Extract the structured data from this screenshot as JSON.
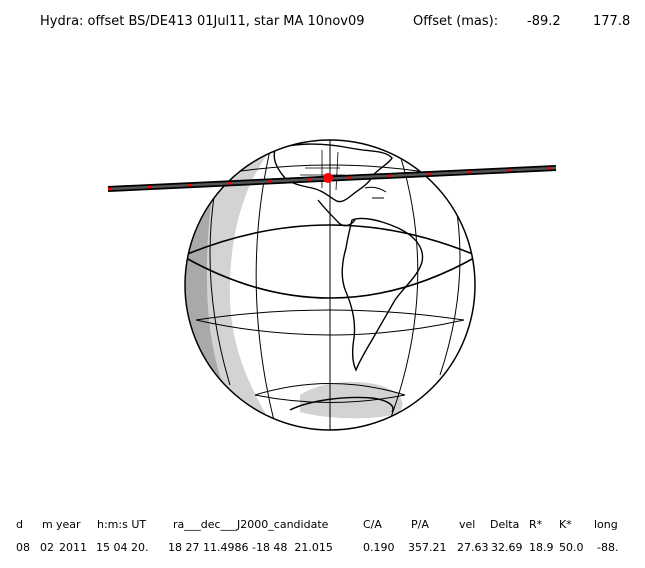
{
  "header": {
    "title": "Hydra: offset BS/DE413 01Jul11, star MA 10nov09",
    "offset_label": "Offset (mas):",
    "offset_x": "-89.2",
    "offset_y": "177.8"
  },
  "table": {
    "col_d": {
      "head": "d",
      "value": "08"
    },
    "col_m": {
      "head": "m",
      "value": "02"
    },
    "col_year": {
      "head": "year",
      "value": "2011"
    },
    "col_hms": {
      "head": "h:m:s UT",
      "value": "15 04 20."
    },
    "col_radec": {
      "head": "ra___dec___J2000_candidate",
      "value": "18 27 11.4986 -18 48  21.015"
    },
    "col_ca": {
      "head": "C/A",
      "value": "0.190"
    },
    "col_pa": {
      "head": "P/A",
      "value": "357.21"
    },
    "col_vel": {
      "head": "vel",
      "value": "27.63"
    },
    "col_delta": {
      "head": "Delta",
      "value": "32.69"
    },
    "col_rstar": {
      "head": "R*",
      "value": "18.9"
    },
    "col_kstar": {
      "head": "K*",
      "value": "50.0"
    },
    "col_long": {
      "head": "long",
      "value": "-88."
    }
  },
  "map": {
    "band_color": "#555555",
    "event_color": "#ff0000",
    "night_shade_color": "#d3d3d3",
    "deep_shade_color": "#a9a9a9"
  }
}
